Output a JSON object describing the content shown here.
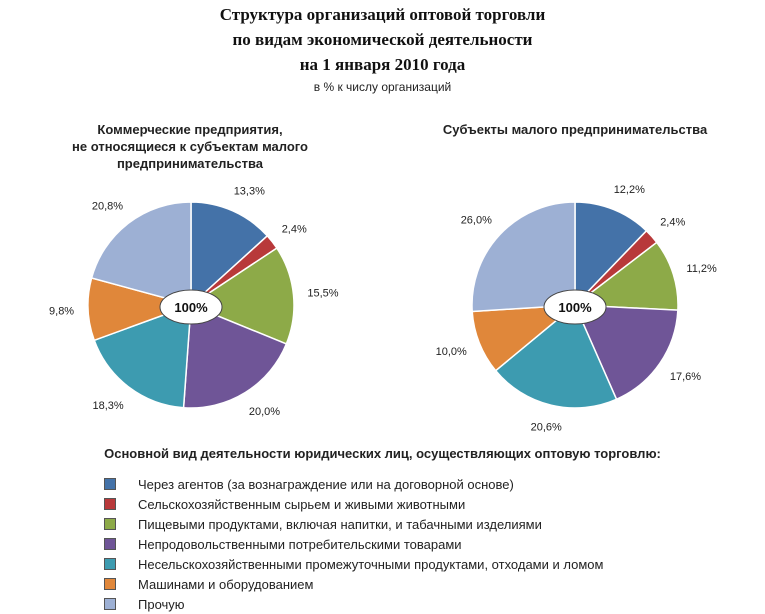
{
  "header": {
    "title_line1": "Структура организаций оптовой торговли",
    "title_line2": "по видам экономической деятельности",
    "title_line3": "на 1 января 2010 года",
    "subtitle": "в % к числу организаций"
  },
  "legend_title": "Основной вид деятельности юридических лиц, осуществляющих оптовую торговлю:",
  "chart_data": [
    {
      "type": "pie",
      "title_lines": [
        "Коммерческие предприятия,",
        "не относящиеся к субъектам малого",
        "предпринимательства"
      ],
      "center_label": "100%",
      "categories": [
        "Через агентов (за вознаграждение или на договорной основе)",
        "Сельскохозяйственным сырьем и живыми животными",
        "Пищевыми продуктами,  включая напитки, и табачными изделиями",
        "Непродовольственными потребительскими товарами",
        "Несельскохозяйственными  промежуточными продуктами, отходами и ломом",
        "Машинами и оборудованием",
        "Прочую"
      ],
      "values": [
        13.3,
        2.4,
        15.5,
        20.0,
        18.3,
        9.8,
        20.8
      ],
      "value_labels": [
        "13,3%",
        "2,4%",
        "15,5%",
        "20,0%",
        "18,3%",
        "9,8%",
        "20,8%"
      ]
    },
    {
      "type": "pie",
      "title_lines": [
        "Субъекты малого предпринимательства"
      ],
      "center_label": "100%",
      "categories": [
        "Через агентов (за вознаграждение или на договорной основе)",
        "Сельскохозяйственным сырьем и живыми животными",
        "Пищевыми продуктами,  включая напитки, и табачными изделиями",
        "Непродовольственными потребительскими товарами",
        "Несельскохозяйственными  промежуточными продуктами, отходами и ломом",
        "Машинами и оборудованием",
        "Прочую"
      ],
      "values": [
        12.2,
        2.4,
        11.2,
        17.6,
        20.6,
        10.0,
        26.0
      ],
      "value_labels": [
        "12,2%",
        "2,4%",
        "11,2%",
        "17,6%",
        "20,6%",
        "10,0%",
        "26,0%"
      ]
    }
  ],
  "colors": [
    "#4472a8",
    "#b8393a",
    "#8daa48",
    "#6f5597",
    "#3d9bb0",
    "#e0873a",
    "#9db0d4"
  ],
  "legend": [
    {
      "label": "Через агентов (за вознаграждение или на договорной основе)"
    },
    {
      "label": "Сельскохозяйственным сырьем и живыми животными"
    },
    {
      "label": "Пищевыми продуктами,  включая напитки, и табачными изделиями"
    },
    {
      "label": "Непродовольственными потребительскими товарами"
    },
    {
      "label": "Несельскохозяйственными  промежуточными продуктами, отходами и ломом"
    },
    {
      "label": "Машинами и оборудованием"
    },
    {
      "label": "Прочую"
    }
  ]
}
